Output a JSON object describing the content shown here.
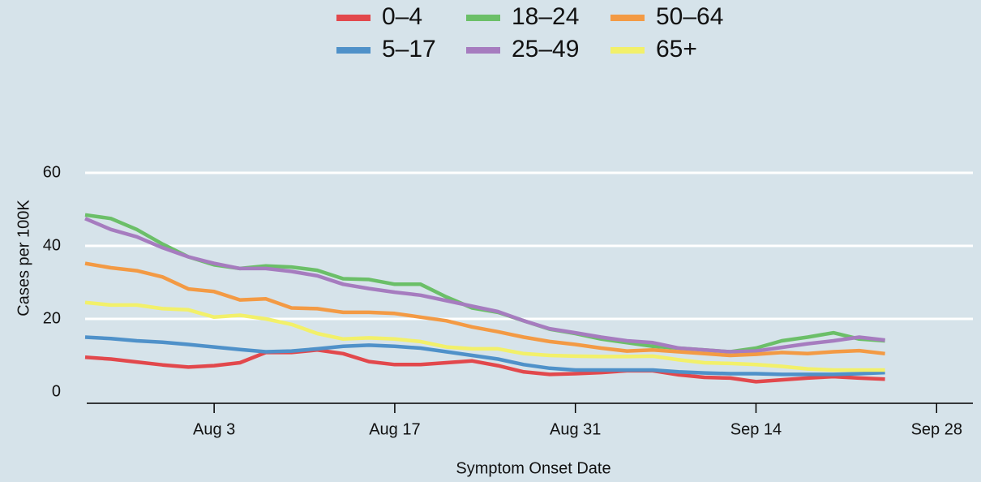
{
  "chart_data": {
    "type": "line",
    "x_label": "Symptom Onset Date",
    "y_label": "Cases per 100K",
    "x": [
      "Jul 24",
      "Jul 26",
      "Jul 28",
      "Jul 30",
      "Aug 1",
      "Aug 3",
      "Aug 5",
      "Aug 7",
      "Aug 9",
      "Aug 11",
      "Aug 13",
      "Aug 15",
      "Aug 17",
      "Aug 19",
      "Aug 21",
      "Aug 23",
      "Aug 25",
      "Aug 27",
      "Aug 29",
      "Aug 31",
      "Sep 2",
      "Sep 4",
      "Sep 6",
      "Sep 8",
      "Sep 10",
      "Sep 12",
      "Sep 14",
      "Sep 16",
      "Sep 18",
      "Sep 20",
      "Sep 22",
      "Sep 24"
    ],
    "xlim": [
      "Jul 24",
      "Oct 1"
    ],
    "xticks": [
      "Aug 3",
      "Aug 17",
      "Aug 31",
      "Sep 14",
      "Sep 28"
    ],
    "ylim": [
      -3,
      65
    ],
    "yticks": [
      0,
      20,
      40,
      60
    ],
    "grid": true,
    "legend": "top",
    "series": [
      {
        "name": "0–4",
        "color": "#e2484c",
        "values": [
          9.5,
          9.0,
          8.2,
          7.4,
          6.8,
          7.2,
          8.0,
          10.8,
          10.8,
          11.5,
          10.5,
          8.3,
          7.5,
          7.5,
          8.0,
          8.5,
          7.2,
          5.5,
          4.8,
          5.0,
          5.3,
          5.8,
          5.8,
          4.7,
          4.0,
          3.8,
          2.8,
          3.3,
          3.8,
          4.2,
          3.8,
          3.5
        ]
      },
      {
        "name": "5–17",
        "color": "#4f91c9",
        "values": [
          15.0,
          14.6,
          14.0,
          13.6,
          13.0,
          12.3,
          11.6,
          11.0,
          11.2,
          11.8,
          12.5,
          12.8,
          12.5,
          12.0,
          11.0,
          10.0,
          9.0,
          7.5,
          6.5,
          6.0,
          6.0,
          6.0,
          6.0,
          5.5,
          5.2,
          5.0,
          5.0,
          4.8,
          4.8,
          4.8,
          5.0,
          5.3
        ]
      },
      {
        "name": "18–24",
        "color": "#6bbf68",
        "values": [
          48.5,
          47.5,
          44.5,
          40.5,
          37.0,
          34.8,
          33.8,
          34.5,
          34.2,
          33.3,
          31.0,
          30.8,
          29.5,
          29.5,
          26.0,
          23.0,
          21.8,
          19.5,
          17.2,
          16.0,
          14.5,
          13.5,
          12.5,
          12.0,
          11.5,
          11.0,
          12.0,
          14.0,
          15.0,
          16.2,
          14.5,
          14.0
        ]
      },
      {
        "name": "25–49",
        "color": "#a67cbf",
        "values": [
          47.5,
          44.5,
          42.5,
          39.5,
          37.0,
          35.2,
          33.8,
          33.8,
          33.0,
          31.8,
          29.5,
          28.3,
          27.3,
          26.5,
          25.0,
          23.5,
          22.0,
          19.5,
          17.3,
          16.2,
          15.0,
          14.0,
          13.5,
          12.0,
          11.5,
          11.0,
          11.2,
          12.2,
          13.2,
          14.0,
          15.0,
          14.2
        ]
      },
      {
        "name": "50–64",
        "color": "#f39a44",
        "values": [
          35.2,
          34.0,
          33.2,
          31.5,
          28.2,
          27.5,
          25.2,
          25.5,
          23.0,
          22.8,
          21.8,
          21.8,
          21.5,
          20.5,
          19.5,
          17.8,
          16.5,
          15.0,
          13.8,
          13.0,
          12.0,
          11.2,
          11.5,
          11.0,
          10.5,
          10.0,
          10.3,
          10.8,
          10.5,
          11.0,
          11.3,
          10.5
        ]
      },
      {
        "name": "65+",
        "color": "#f2f06a",
        "values": [
          24.5,
          23.8,
          23.8,
          22.8,
          22.5,
          20.5,
          21.0,
          20.0,
          18.5,
          16.0,
          14.5,
          14.8,
          14.5,
          13.8,
          12.3,
          11.8,
          11.8,
          10.5,
          10.0,
          9.8,
          9.7,
          9.7,
          9.8,
          8.8,
          8.0,
          7.8,
          7.5,
          7.0,
          6.3,
          6.0,
          6.0,
          6.0
        ]
      }
    ]
  }
}
